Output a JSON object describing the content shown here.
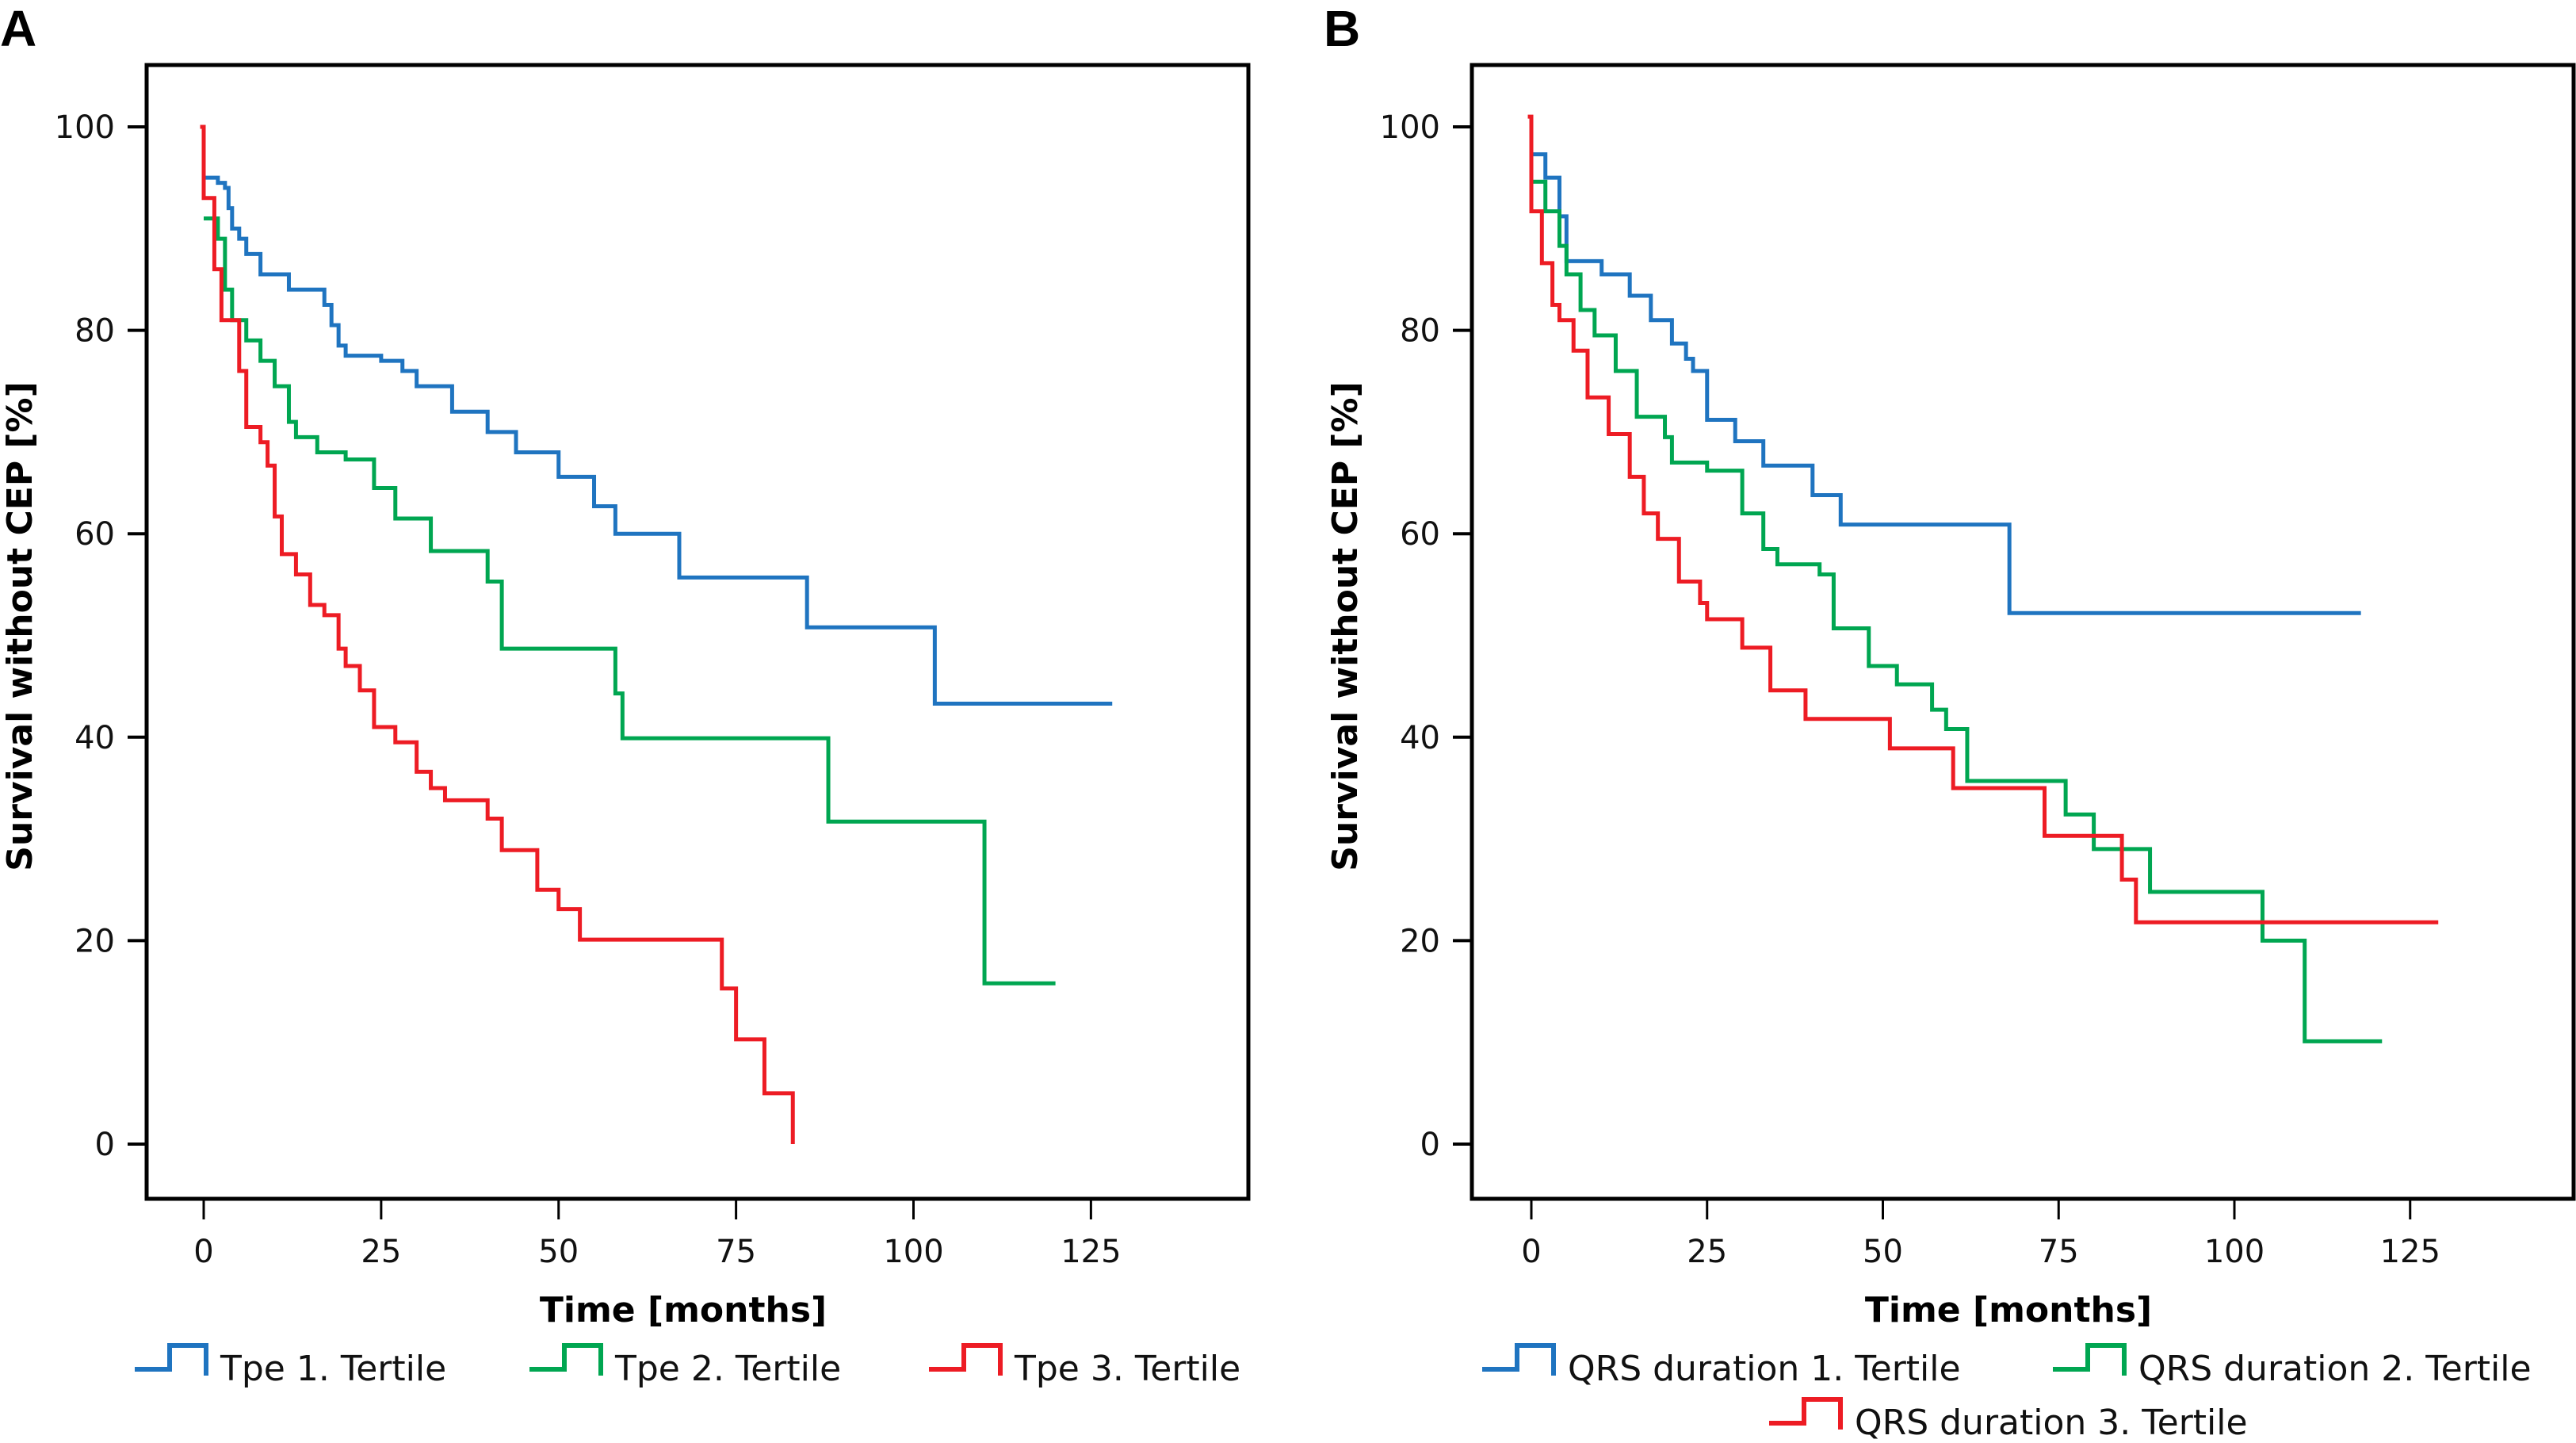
{
  "chart_data": [
    {
      "panel": "A",
      "type": "line",
      "step": true,
      "xlabel": "Time [months]",
      "ylabel": "Survival without CEP [%]",
      "xlim": [
        -8,
        147
      ],
      "ylim": [
        -5,
        110
      ],
      "xticks": [
        0,
        25,
        50,
        75,
        100,
        125
      ],
      "yticks": [
        0,
        20,
        40,
        60,
        80,
        100
      ],
      "grid": false,
      "legend_position": "bottom",
      "series": [
        {
          "name": "Tpe 1. Tertile",
          "color": "#1f74c0",
          "x": [
            0,
            2,
            3,
            3.5,
            4,
            5,
            6,
            8,
            12,
            17,
            18,
            19,
            20,
            25,
            28,
            30,
            35,
            40,
            44,
            50,
            55,
            58,
            67,
            85,
            103,
            128
          ],
          "y": [
            95,
            94.5,
            94,
            92,
            90,
            89,
            87.5,
            85.5,
            84,
            82.5,
            80.5,
            78.5,
            77.5,
            77,
            76,
            74.5,
            72,
            70,
            68,
            65.6,
            62.7,
            60,
            55.7,
            50.8,
            43.3,
            43.3
          ]
        },
        {
          "name": "Tpe 2. Tertile",
          "color": "#00a651",
          "x": [
            0,
            2,
            3,
            4,
            6,
            8,
            10,
            12,
            13,
            16,
            20,
            24,
            27,
            32,
            40,
            42,
            58,
            59,
            88,
            110,
            120
          ],
          "y": [
            91,
            89,
            84,
            81,
            79,
            77,
            74.5,
            71,
            69.5,
            68,
            67.3,
            64.5,
            61.5,
            58.3,
            55.3,
            48.7,
            44.3,
            39.9,
            31.7,
            15.8,
            15.8
          ]
        },
        {
          "name": "Tpe 3. Tertile",
          "color": "#ed1c24",
          "x": [
            -0.5,
            0,
            1.5,
            2.5,
            4,
            5,
            6,
            8,
            9,
            10,
            11,
            13,
            15,
            17,
            19,
            20,
            22,
            24,
            27,
            30,
            32,
            34,
            35,
            40,
            42,
            47,
            50,
            53,
            73,
            75,
            79,
            83,
            83
          ],
          "y": [
            100,
            93,
            86,
            81,
            81,
            76,
            70.5,
            69,
            66.7,
            61.7,
            58,
            56,
            53,
            52,
            48.7,
            47,
            44.6,
            41,
            39.5,
            36.6,
            35,
            33.8,
            33.8,
            32,
            28.9,
            25,
            23.1,
            20.1,
            15.3,
            10.3,
            5,
            0,
            0
          ]
        }
      ]
    },
    {
      "panel": "B",
      "type": "line",
      "step": true,
      "xlabel": "Time [months]",
      "ylabel": "Survival without CEP [%]",
      "xlim": [
        -8,
        147
      ],
      "ylim": [
        -5,
        110
      ],
      "xticks": [
        0,
        25,
        50,
        75,
        100,
        125
      ],
      "yticks": [
        0,
        20,
        40,
        60,
        80,
        100
      ],
      "grid": false,
      "legend_position": "bottom",
      "series": [
        {
          "name": "QRS duration 1. Tertile",
          "color": "#1f74c0",
          "x": [
            0,
            2,
            4,
            5,
            10,
            14,
            17,
            20,
            22,
            23,
            25,
            29,
            33,
            40,
            44,
            68,
            118
          ],
          "y": [
            97.3,
            95,
            91.2,
            86.8,
            85.5,
            83.4,
            81,
            78.7,
            77.2,
            76,
            71.2,
            69.1,
            66.7,
            63.8,
            60.9,
            52.2,
            52.2
          ]
        },
        {
          "name": "QRS duration 2. Tertile",
          "color": "#00a651",
          "x": [
            0,
            2,
            4,
            5,
            7,
            9,
            12,
            15,
            19,
            20,
            25,
            30,
            33,
            35,
            41,
            43,
            48,
            52,
            57,
            59,
            62,
            76,
            80,
            83,
            88,
            104,
            110,
            121
          ],
          "y": [
            94.6,
            91.7,
            88.3,
            85.5,
            82,
            79.5,
            76,
            71.5,
            69.5,
            67,
            66.2,
            62,
            58.5,
            57,
            56,
            50.7,
            47,
            45.2,
            42.7,
            40.8,
            35.7,
            32.4,
            29,
            29,
            24.8,
            20,
            10.1,
            10.1
          ]
        },
        {
          "name": "QRS duration 3. Tertile",
          "color": "#ed1c24",
          "x": [
            -0.5,
            0,
            1.5,
            3,
            4,
            6,
            8,
            11,
            14,
            16,
            18,
            21,
            24,
            25,
            30,
            34,
            39,
            47,
            51,
            60,
            73,
            80,
            84,
            86,
            129
          ],
          "y": [
            101,
            91.7,
            86.6,
            82.5,
            81,
            78,
            73.4,
            69.8,
            65.6,
            62,
            59.5,
            55.3,
            53.2,
            51.6,
            48.8,
            44.6,
            41.8,
            41.8,
            38.9,
            35,
            30.3,
            30.3,
            26,
            21.8,
            21.8
          ]
        }
      ]
    }
  ]
}
